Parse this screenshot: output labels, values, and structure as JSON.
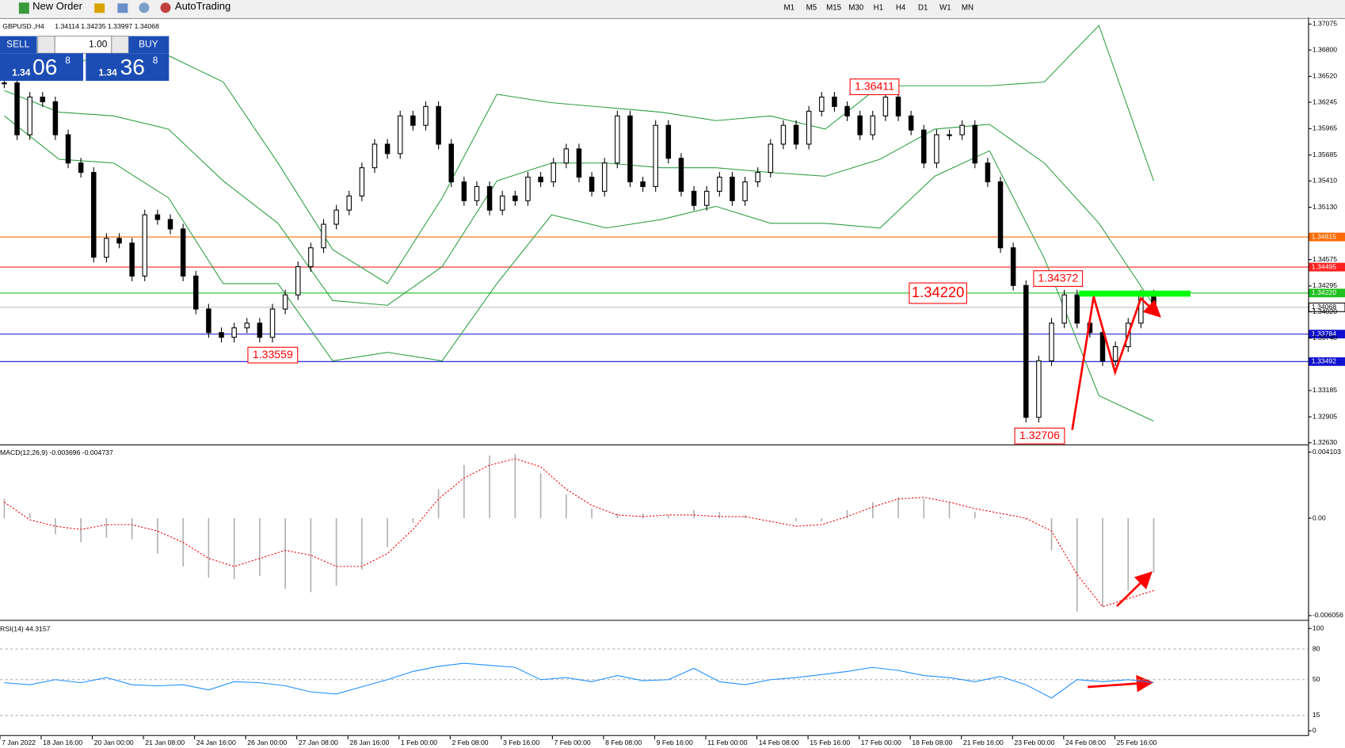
{
  "toolbar": {
    "new_order": "New Order",
    "auto_trading": "AutoTrading",
    "timeframes": [
      "M1",
      "M5",
      "M15",
      "M30",
      "H1",
      "H4",
      "D1",
      "W1",
      "MN"
    ]
  },
  "trade_panel": {
    "sell": "SELL",
    "lot": "1.00",
    "buy": "BUY",
    "sell_price": {
      "big": "1.34",
      "pips": "06",
      "point": "8"
    },
    "buy_price": {
      "big": "1.34",
      "pips": "36",
      "point": "8"
    }
  },
  "price_chart": {
    "symbol": "GBPUSD.,H4",
    "ohlc": "1.34114 1.34235 1.33997 1.34068",
    "ylim": [
      1.3263,
      1.37075
    ],
    "yticks": [
      1.37075,
      {
        "value": 1.368,
        "label": "1.36800"
      },
      {
        "value": 1.3652,
        "label": "1.36520"
      },
      1.36245,
      1.35965,
      1.35685,
      {
        "value": 1.3541,
        "label": "1.35410"
      },
      {
        "value": 1.3513,
        "label": "1.35130"
      },
      1.34575,
      1.34295,
      {
        "value": 1.3402,
        "label": "1.34020"
      },
      {
        "value": 1.3374,
        "label": "1.33740"
      },
      1.33185,
      1.32905,
      {
        "value": 1.3263,
        "label": "1.32630"
      }
    ],
    "closes": [
      1.3645,
      1.359,
      1.363,
      1.3625,
      1.359,
      1.356,
      1.355,
      1.346,
      1.348,
      1.3475,
      1.344,
      1.3505,
      1.35,
      1.349,
      1.344,
      1.3405,
      1.338,
      1.3375,
      1.3385,
      1.339,
      1.3375,
      1.3405,
      1.342,
      1.345,
      1.347,
      1.3495,
      1.351,
      1.3525,
      1.3555,
      1.358,
      1.357,
      1.361,
      1.36,
      1.362,
      1.358,
      1.354,
      1.352,
      1.3535,
      1.351,
      1.3525,
      1.352,
      1.3545,
      1.354,
      1.356,
      1.3575,
      1.3545,
      1.353,
      1.356,
      1.361,
      1.354,
      1.3535,
      1.36,
      1.3565,
      1.353,
      1.3515,
      1.353,
      1.3545,
      1.352,
      1.354,
      1.355,
      1.358,
      1.36,
      1.358,
      1.3615,
      1.363,
      1.362,
      1.361,
      1.359,
      1.361,
      1.363,
      1.361,
      1.3595,
      1.356,
      1.359,
      1.359,
      1.36,
      1.356,
      1.354,
      1.347,
      1.343,
      1.329,
      1.335,
      1.339,
      1.342,
      1.339,
      1.338,
      1.335,
      1.3365,
      1.339,
      1.342,
      1.3407
    ],
    "bollinger": {
      "upper": [
        1.3665,
        1.3669,
        1.3669,
        1.3674,
        1.3646,
        1.356,
        1.3468,
        1.3432,
        1.3523,
        1.3633,
        1.3624,
        1.3619,
        1.3614,
        1.3605,
        1.361,
        1.3596,
        1.3642,
        1.3642,
        1.3642,
        1.3646,
        1.3706,
        1.3541
      ],
      "middle": [
        1.3637,
        1.3614,
        1.361,
        1.3596,
        1.3541,
        1.3496,
        1.3414,
        1.3409,
        1.345,
        1.3541,
        1.356,
        1.356,
        1.3555,
        1.3555,
        1.355,
        1.3546,
        1.3564,
        1.3596,
        1.3601,
        1.356,
        1.3496,
        1.3409
      ],
      "lower": [
        1.361,
        1.3564,
        1.356,
        1.3523,
        1.3432,
        1.3432,
        1.335,
        1.3359,
        1.335,
        1.3432,
        1.3505,
        1.3491,
        1.35,
        1.3514,
        1.3496,
        1.3496,
        1.3491,
        1.3546,
        1.3573,
        1.3459,
        1.3313,
        1.3286
      ]
    },
    "levels": [
      {
        "value": 1.34815,
        "label": "1.34815",
        "color": "#ff6a00"
      },
      {
        "value": 1.34495,
        "label": "1.34495",
        "color": "#ff2020"
      },
      {
        "value": 1.3422,
        "label": "1.34220",
        "color": "#20c020"
      },
      {
        "value": 1.34068,
        "label": "1.34068",
        "color": "#c0c0c0"
      },
      {
        "value": 1.33784,
        "label": "1.33784",
        "color": "#1010d0"
      },
      {
        "value": 1.33492,
        "label": "1.33492",
        "color": "#1010d0"
      }
    ],
    "annotations": [
      "1.36411",
      "1.33559",
      "1.34220",
      "1.34372",
      "1.32706"
    ]
  },
  "macd": {
    "label": "MACD(12,26,9) -0.003696 -0.004737",
    "ylim": [
      -0.006056,
      0.004103
    ],
    "yticks": [
      0.004103,
      {
        "value": 0,
        "label": "0.00"
      },
      -0.006056
    ],
    "histogram": [
      0.0012,
      0.0003,
      -0.001,
      -0.0015,
      -0.0012,
      -0.0013,
      -0.0022,
      -0.003,
      -0.0037,
      -0.0038,
      -0.0036,
      -0.0044,
      -0.0046,
      -0.0042,
      -0.0032,
      -0.0018,
      -0.0003,
      0.0018,
      0.0033,
      0.0039,
      0.004,
      0.0028,
      0.0015,
      0.0006,
      0.0003,
      0.0003,
      0.0002,
      0.0005,
      0.0004,
      0.0002,
      0,
      -0.0002,
      -0.0002,
      0.0005,
      0.001,
      0.0013,
      0.0012,
      0.001,
      0.0004,
      0.0001,
      -0.0001,
      -0.002,
      -0.0058,
      -0.0055,
      -0.0045,
      -0.0034
    ],
    "signal": [
      0.001,
      -0.0001,
      -0.0005,
      -0.0007,
      -0.0004,
      -0.0004,
      -0.0008,
      -0.0015,
      -0.0025,
      -0.003,
      -0.0025,
      -0.002,
      -0.0023,
      -0.003,
      -0.003,
      -0.0022,
      -0.0007,
      0.0012,
      0.0025,
      0.0033,
      0.0037,
      0.0032,
      0.0018,
      0.0008,
      0.0002,
      0.0001,
      0.0002,
      0.0002,
      0.0001,
      0.0001,
      -0.0002,
      -0.0005,
      -0.0004,
      0.0001,
      0.0007,
      0.0012,
      0.0013,
      0.001,
      0.0006,
      0.0003,
      0,
      -0.0008,
      -0.0035,
      -0.0055,
      -0.005,
      -0.0045
    ]
  },
  "rsi": {
    "label": "RSI(14) 44.3157",
    "ylim": [
      0,
      100
    ],
    "yticks": [
      100,
      80,
      50,
      15,
      0
    ],
    "values": [
      47,
      45,
      50,
      47,
      52,
      45,
      44,
      45,
      40,
      48,
      47,
      44,
      38,
      36,
      43,
      50,
      58,
      63,
      66,
      64,
      62,
      50,
      52,
      48,
      54,
      49,
      50,
      61,
      48,
      45,
      50,
      52,
      55,
      58,
      62,
      59,
      54,
      52,
      48,
      53,
      45,
      32,
      50,
      48,
      50,
      47
    ]
  },
  "time_axis": [
    "7 Jan 2022",
    "18 Jan 16:00",
    "20 Jan 00:00",
    "21 Jan 08:00",
    "24 Jan 16:00",
    "26 Jan 00:00",
    "27 Jan 08:00",
    "28 Jan 16:00",
    "1 Feb 00:00",
    "2 Feb 08:00",
    "3 Feb 16:00",
    "7 Feb 00:00",
    "8 Feb 08:00",
    "9 Feb 16:00",
    "11 Feb 00:00",
    "14 Feb 08:00",
    "15 Feb 16:00",
    "17 Feb 00:00",
    "18 Feb 08:00",
    "21 Feb 16:00",
    "23 Feb 00:00",
    "24 Feb 08:00",
    "25 Feb 16:00"
  ]
}
